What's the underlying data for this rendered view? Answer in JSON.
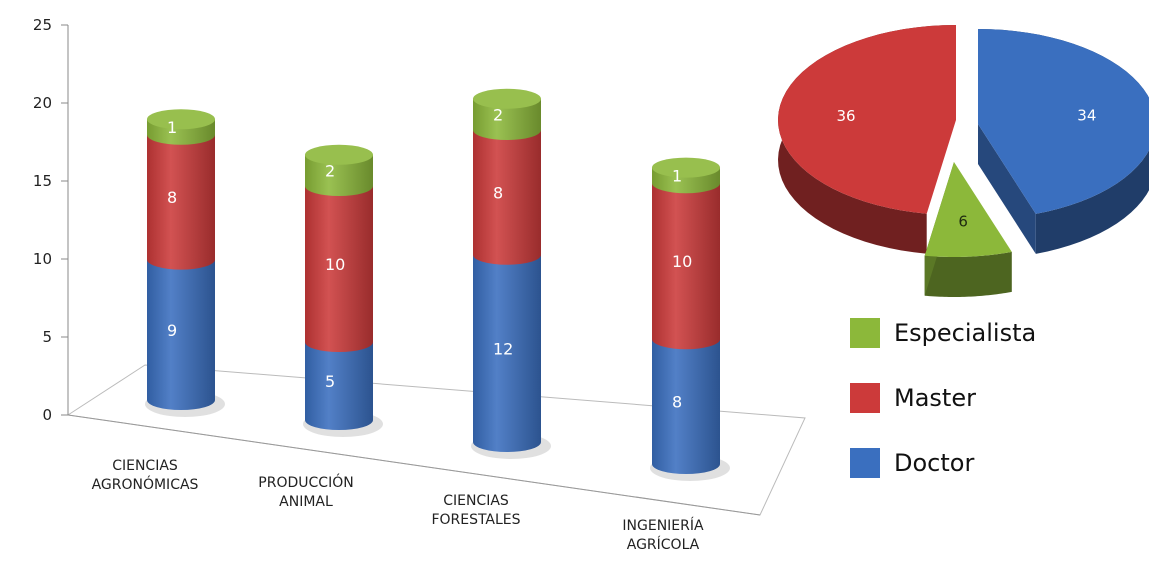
{
  "chart_data": [
    {
      "type": "bar",
      "stacked": true,
      "style": "3d-cylinder",
      "title": "",
      "xlabel": "",
      "ylabel": "",
      "ylim": [
        0,
        25
      ],
      "yticks": [
        0,
        5,
        10,
        15,
        20,
        25
      ],
      "categories": [
        [
          "CIENCIAS",
          "AGRONÓMICAS"
        ],
        [
          "PRODUCCIÓN",
          "ANIMAL"
        ],
        [
          "CIENCIAS",
          "FORESTALES"
        ],
        [
          "INGENIERÍA",
          "AGRÍCOLA"
        ]
      ],
      "series": [
        {
          "name": "Doctor",
          "color": "#3a6fbf",
          "values": [
            9,
            5,
            12,
            8
          ]
        },
        {
          "name": "Master",
          "color": "#cc3a3a",
          "values": [
            8,
            10,
            8,
            10
          ]
        },
        {
          "name": "Especialista",
          "color": "#8cb83a",
          "values": [
            1,
            2,
            2,
            1
          ]
        }
      ]
    },
    {
      "type": "pie",
      "style": "3d-exploded",
      "slices": [
        {
          "name": "Doctor",
          "value": 34,
          "color": "#3a6fbf"
        },
        {
          "name": "Especialista",
          "value": 6,
          "color": "#8cb83a"
        },
        {
          "name": "Master",
          "value": 36,
          "color": "#cc3a3a"
        }
      ]
    }
  ],
  "legend": {
    "placement": "right",
    "items": [
      {
        "label": "Especialista",
        "color": "#8cb83a"
      },
      {
        "label": "Master",
        "color": "#cc3a3a"
      },
      {
        "label": "Doctor",
        "color": "#3a6fbf"
      }
    ]
  }
}
